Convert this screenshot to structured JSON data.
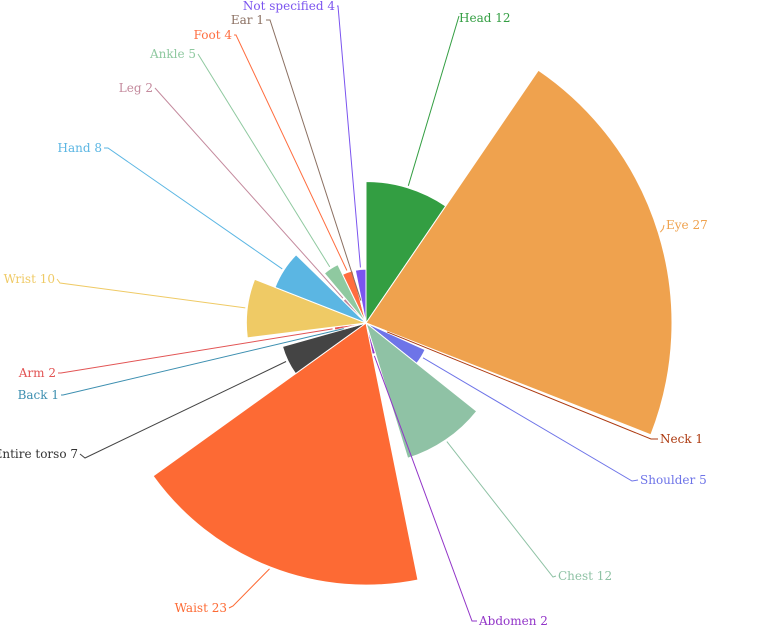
{
  "chart_data": {
    "type": "pie",
    "variant": "nightingale-rose",
    "title": "",
    "legend": "none",
    "label_style": "outside labels with leader lines",
    "slices": [
      {
        "label": "Head 12",
        "category": "Head",
        "value": 12,
        "color": "#339e42"
      },
      {
        "label": "Eye 27",
        "category": "Eye",
        "value": 27,
        "color": "#efa24e"
      },
      {
        "label": "Neck 1",
        "category": "Neck",
        "value": 1,
        "color": "#ad3a10"
      },
      {
        "label": "Shoulder 5",
        "category": "Shoulder",
        "value": 5,
        "color": "#6e74e8"
      },
      {
        "label": "Chest 12",
        "category": "Chest",
        "value": 12,
        "color": "#8fc2a5"
      },
      {
        "label": "Abdomen 2",
        "category": "Abdomen",
        "value": 2,
        "color": "#9235c8"
      },
      {
        "label": "Waist 23",
        "category": "Waist",
        "value": 23,
        "color": "#fd6a34"
      },
      {
        "label": "Entire torso 7",
        "category": "Entire torso",
        "value": 7,
        "color": "#444444"
      },
      {
        "label": "Back 1",
        "category": "Back",
        "value": 1,
        "color": "#3d8fb0"
      },
      {
        "label": "Arm 2",
        "category": "Arm",
        "value": 2,
        "color": "#e25454"
      },
      {
        "label": "Wrist 10",
        "category": "Wrist",
        "value": 10,
        "color": "#efca65"
      },
      {
        "label": "Hand 8",
        "category": "Hand",
        "value": 8,
        "color": "#5bb6e3"
      },
      {
        "label": "Leg 2",
        "category": "Leg",
        "value": 2,
        "color": "#c48a9d"
      },
      {
        "label": "Ankle 5",
        "category": "Ankle",
        "value": 5,
        "color": "#8fc9a0"
      },
      {
        "label": "Foot 4",
        "category": "Foot",
        "value": 4,
        "color": "#ff6d3f"
      },
      {
        "label": "Ear 1",
        "category": "Ear",
        "value": 1,
        "color": "#8b7062"
      },
      {
        "label": "Not specified 4",
        "category": "Not specified",
        "value": 4,
        "color": "#7b54ef"
      }
    ]
  }
}
